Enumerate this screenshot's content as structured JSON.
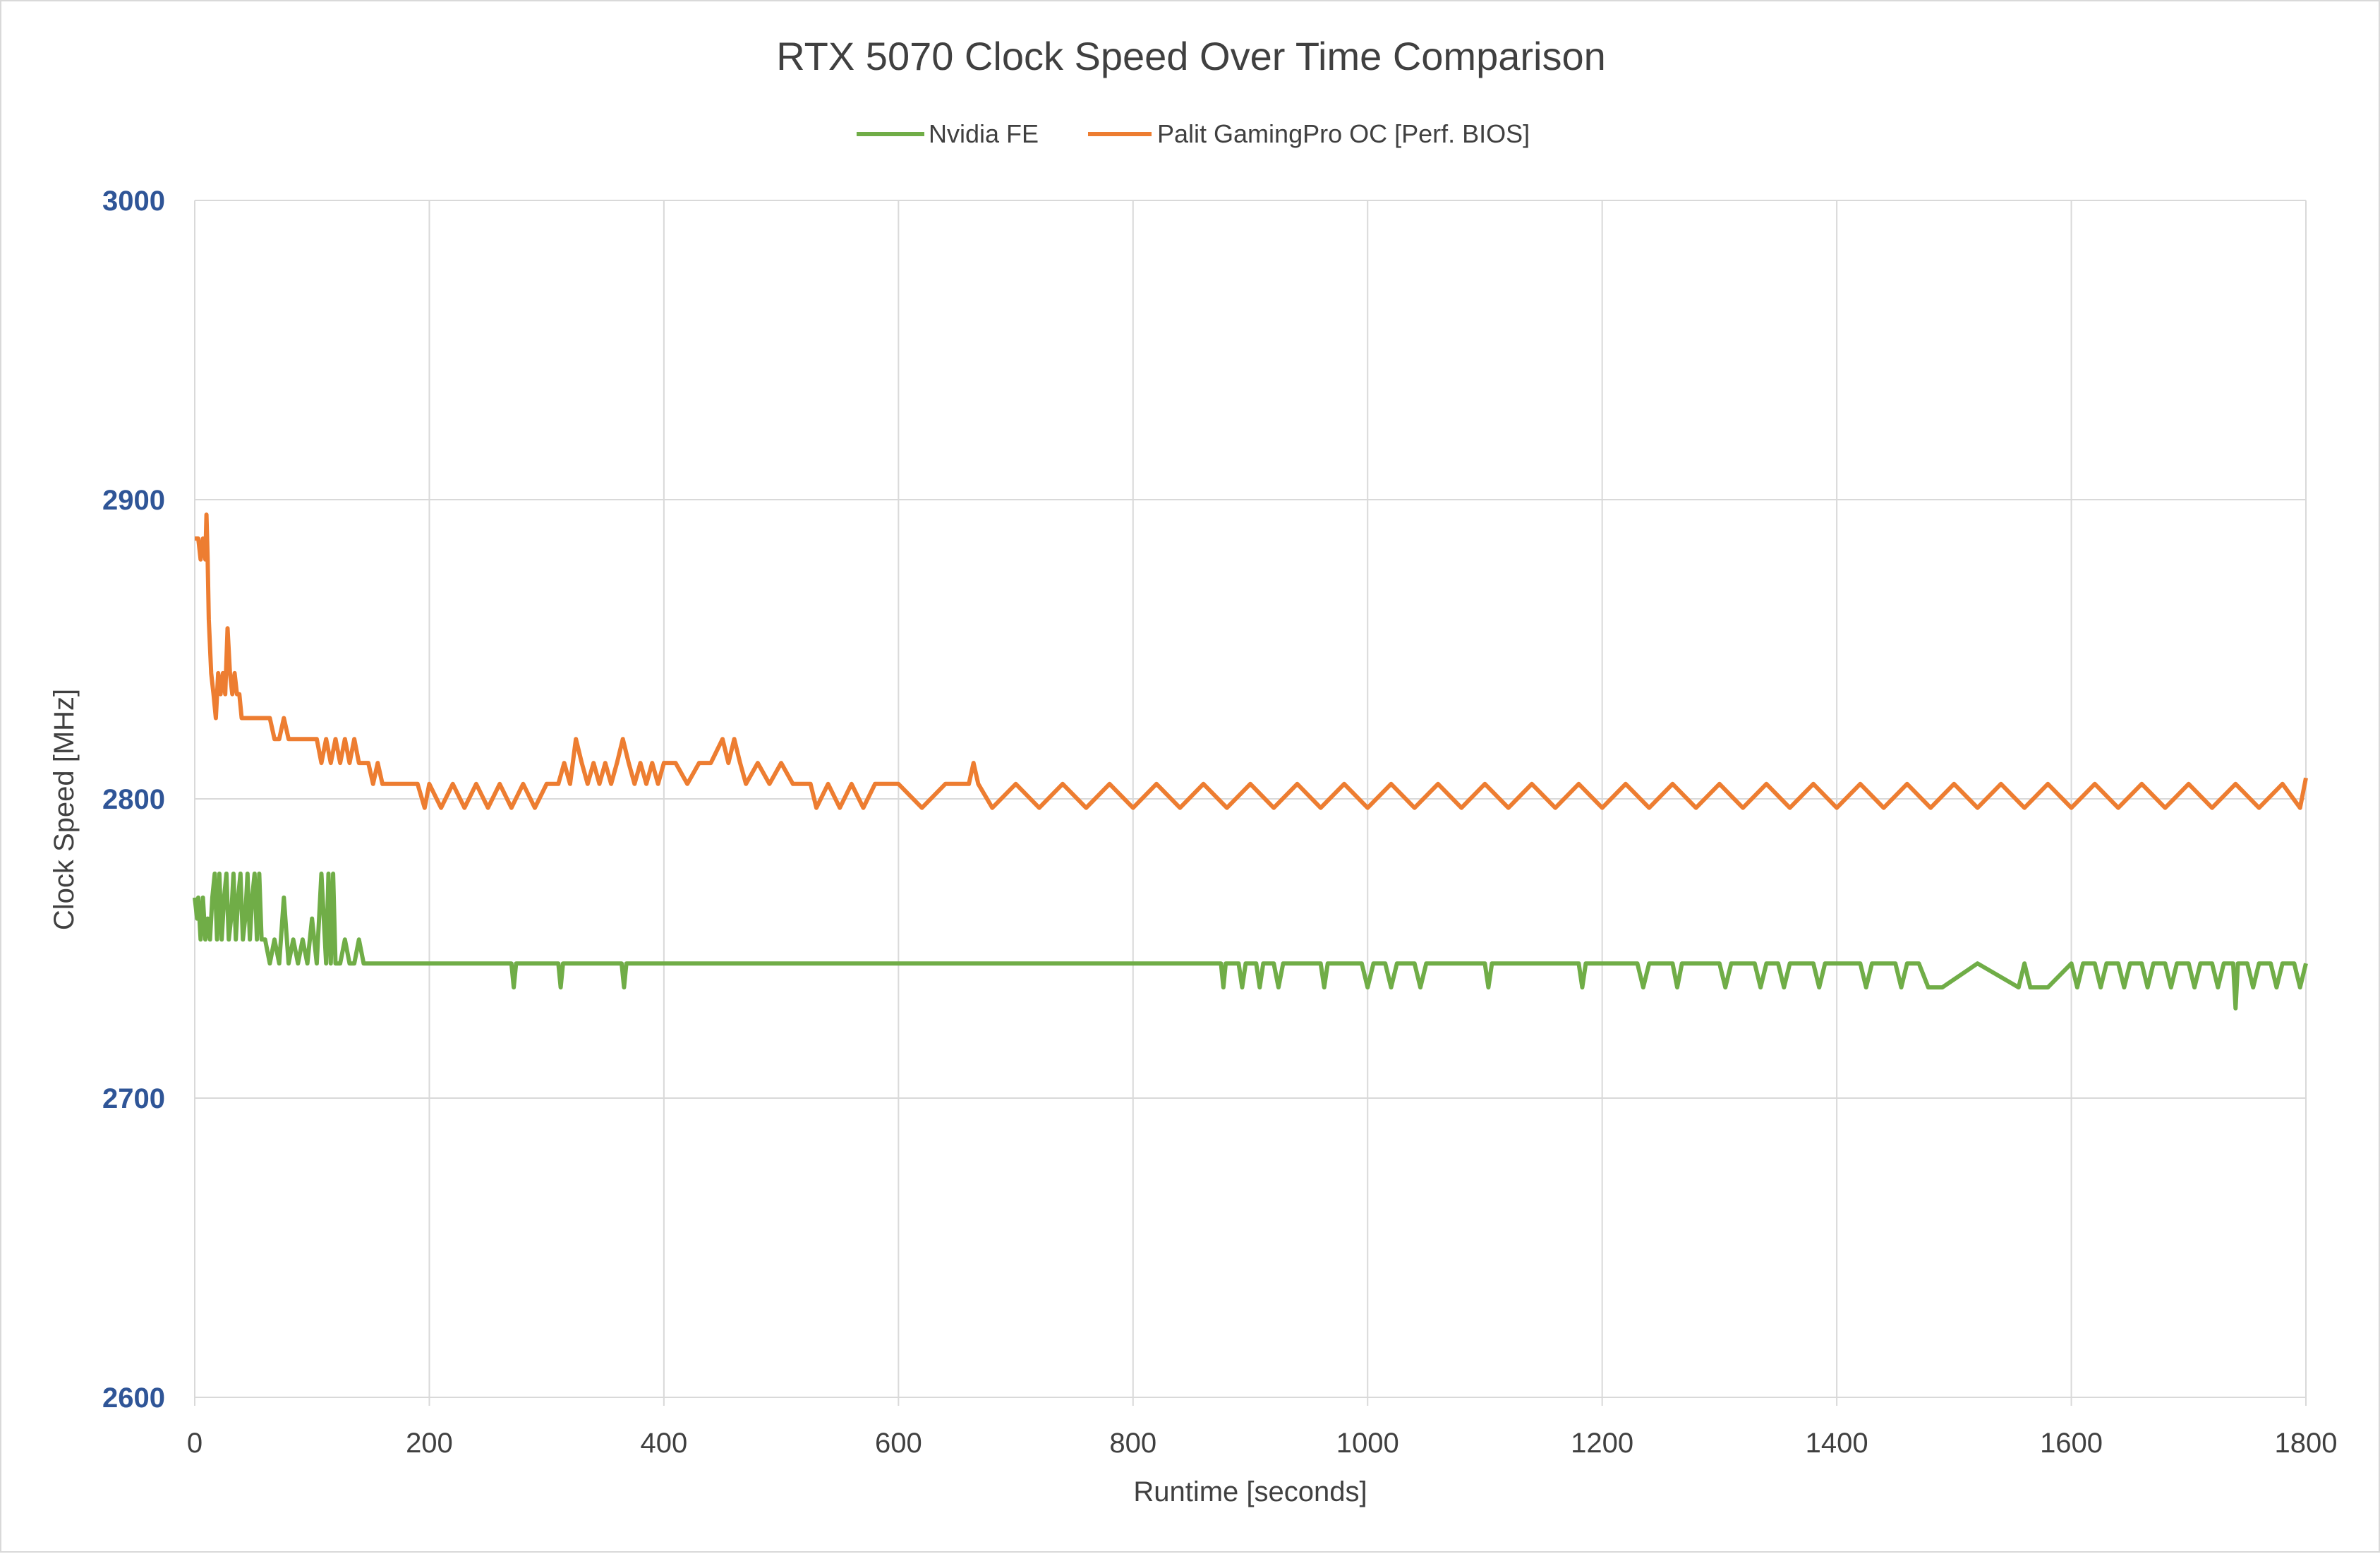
{
  "chart_data": {
    "type": "line",
    "title": "RTX 5070 Clock Speed Over Time Comparison",
    "xlabel": "Runtime [seconds]",
    "ylabel": "Clock Speed [MHz]",
    "xlim": [
      0,
      1800
    ],
    "ylim": [
      2600,
      3000
    ],
    "xticks": [
      "0",
      "200",
      "400",
      "600",
      "800",
      "1000",
      "1200",
      "1400",
      "1600",
      "1800"
    ],
    "yticks": [
      "2600",
      "2700",
      "2800",
      "2900",
      "3000"
    ],
    "grid": true,
    "legend_position": "top",
    "series": [
      {
        "name": "Nvidia FE",
        "color": "#70ad47",
        "x": [
          0,
          2,
          3,
          5,
          7,
          9,
          11,
          13,
          15,
          17,
          19,
          21,
          23,
          25,
          27,
          29,
          31,
          33,
          35,
          37,
          39,
          41,
          43,
          45,
          47,
          49,
          51,
          53,
          55,
          57,
          60,
          64,
          68,
          72,
          76,
          80,
          84,
          88,
          92,
          96,
          100,
          104,
          108,
          112,
          114,
          116,
          118,
          120,
          124,
          128,
          132,
          136,
          140,
          144,
          148,
          200,
          270,
          272,
          274,
          310,
          312,
          314,
          364,
          366,
          368,
          600,
          875,
          877,
          879,
          890,
          893,
          896,
          905,
          908,
          911,
          920,
          924,
          928,
          960,
          963,
          966,
          995,
          1000,
          1005,
          1015,
          1020,
          1025,
          1040,
          1045,
          1050,
          1100,
          1103,
          1106,
          1180,
          1183,
          1186,
          1230,
          1235,
          1240,
          1260,
          1264,
          1268,
          1300,
          1305,
          1310,
          1330,
          1335,
          1340,
          1350,
          1355,
          1360,
          1380,
          1385,
          1390,
          1420,
          1425,
          1430,
          1450,
          1455,
          1460,
          1470,
          1478,
          1485,
          1490,
          1520,
          1555,
          1560,
          1565,
          1580,
          1600,
          1605,
          1610,
          1620,
          1625,
          1630,
          1640,
          1645,
          1650,
          1660,
          1665,
          1670,
          1680,
          1685,
          1690,
          1700,
          1705,
          1710,
          1720,
          1725,
          1730,
          1738,
          1740,
          1742,
          1750,
          1755,
          1760,
          1770,
          1775,
          1780,
          1790,
          1795,
          1800
        ],
        "values": [
          2767,
          2760,
          2767,
          2753,
          2767,
          2753,
          2760,
          2753,
          2767,
          2775,
          2753,
          2775,
          2753,
          2767,
          2775,
          2753,
          2760,
          2775,
          2753,
          2767,
          2775,
          2753,
          2760,
          2775,
          2753,
          2767,
          2775,
          2753,
          2775,
          2753,
          2753,
          2745,
          2753,
          2745,
          2767,
          2745,
          2753,
          2745,
          2753,
          2745,
          2760,
          2745,
          2775,
          2745,
          2775,
          2745,
          2775,
          2745,
          2745,
          2753,
          2745,
          2745,
          2753,
          2745,
          2745,
          2745,
          2745,
          2737,
          2745,
          2745,
          2737,
          2745,
          2745,
          2737,
          2745,
          2745,
          2745,
          2737,
          2745,
          2745,
          2737,
          2745,
          2745,
          2737,
          2745,
          2745,
          2737,
          2745,
          2745,
          2737,
          2745,
          2745,
          2737,
          2745,
          2745,
          2737,
          2745,
          2745,
          2737,
          2745,
          2745,
          2737,
          2745,
          2745,
          2737,
          2745,
          2745,
          2737,
          2745,
          2745,
          2737,
          2745,
          2745,
          2737,
          2745,
          2745,
          2737,
          2745,
          2745,
          2737,
          2745,
          2745,
          2737,
          2745,
          2745,
          2737,
          2745,
          2745,
          2737,
          2745,
          2745,
          2737,
          2737,
          2737,
          2745,
          2737,
          2745,
          2737,
          2737,
          2745,
          2737,
          2745,
          2745,
          2737,
          2745,
          2745,
          2737,
          2745,
          2745,
          2737,
          2745,
          2745,
          2737,
          2745,
          2745,
          2737,
          2745,
          2745,
          2737,
          2745,
          2745,
          2730,
          2745,
          2745,
          2737,
          2745,
          2745,
          2737,
          2745,
          2745,
          2737,
          2745
        ]
      },
      {
        "name": "Palit GamingPro OC [Perf. BIOS]",
        "color": "#ed7d31",
        "x": [
          0,
          3,
          5,
          7,
          9,
          10,
          11,
          12,
          14,
          16,
          18,
          20,
          22,
          24,
          26,
          28,
          30,
          32,
          34,
          36,
          38,
          40,
          44,
          48,
          52,
          56,
          60,
          64,
          68,
          72,
          76,
          80,
          84,
          88,
          92,
          96,
          100,
          104,
          108,
          112,
          116,
          120,
          124,
          128,
          132,
          136,
          140,
          144,
          148,
          152,
          156,
          160,
          166,
          172,
          180,
          190,
          196,
          200,
          210,
          220,
          230,
          240,
          250,
          260,
          270,
          280,
          290,
          300,
          310,
          315,
          320,
          325,
          330,
          335,
          340,
          345,
          350,
          355,
          360,
          365,
          370,
          375,
          380,
          385,
          390,
          395,
          400,
          410,
          420,
          430,
          440,
          450,
          455,
          460,
          465,
          470,
          480,
          490,
          500,
          510,
          520,
          525,
          530,
          540,
          550,
          560,
          570,
          580,
          600,
          620,
          640,
          660,
          664,
          668,
          680,
          700,
          720,
          740,
          760,
          780,
          800,
          820,
          840,
          860,
          880,
          900,
          920,
          940,
          960,
          980,
          1000,
          1020,
          1040,
          1060,
          1080,
          1100,
          1120,
          1140,
          1160,
          1180,
          1200,
          1220,
          1240,
          1260,
          1280,
          1300,
          1320,
          1340,
          1360,
          1380,
          1400,
          1420,
          1440,
          1460,
          1480,
          1500,
          1520,
          1540,
          1560,
          1580,
          1600,
          1620,
          1640,
          1660,
          1680,
          1700,
          1720,
          1740,
          1760,
          1780,
          1795,
          1800
        ],
        "values": [
          2887,
          2887,
          2880,
          2887,
          2880,
          2895,
          2880,
          2860,
          2842,
          2835,
          2827,
          2842,
          2835,
          2842,
          2835,
          2857,
          2842,
          2835,
          2842,
          2835,
          2835,
          2827,
          2827,
          2827,
          2827,
          2827,
          2827,
          2827,
          2820,
          2820,
          2827,
          2820,
          2820,
          2820,
          2820,
          2820,
          2820,
          2820,
          2812,
          2820,
          2812,
          2820,
          2812,
          2820,
          2812,
          2820,
          2812,
          2812,
          2812,
          2805,
          2812,
          2805,
          2805,
          2805,
          2805,
          2805,
          2797,
          2805,
          2797,
          2805,
          2797,
          2805,
          2797,
          2805,
          2797,
          2805,
          2797,
          2805,
          2805,
          2812,
          2805,
          2820,
          2812,
          2805,
          2812,
          2805,
          2812,
          2805,
          2812,
          2820,
          2812,
          2805,
          2812,
          2805,
          2812,
          2805,
          2812,
          2812,
          2805,
          2812,
          2812,
          2820,
          2812,
          2820,
          2812,
          2805,
          2812,
          2805,
          2812,
          2805,
          2805,
          2805,
          2797,
          2805,
          2797,
          2805,
          2797,
          2805,
          2805,
          2797,
          2805,
          2805,
          2812,
          2805,
          2797,
          2805,
          2797,
          2805,
          2797,
          2805,
          2797,
          2805,
          2797,
          2805,
          2797,
          2805,
          2797,
          2805,
          2797,
          2805,
          2797,
          2805,
          2797,
          2805,
          2797,
          2805,
          2797,
          2805,
          2797,
          2805,
          2797,
          2805,
          2797,
          2805,
          2797,
          2805,
          2797,
          2805,
          2797,
          2805,
          2797,
          2805,
          2797,
          2805,
          2797,
          2805,
          2797,
          2805,
          2797,
          2805,
          2797,
          2805,
          2797,
          2805,
          2797,
          2805,
          2797,
          2805,
          2797,
          2805,
          2797,
          2807
        ]
      }
    ]
  }
}
